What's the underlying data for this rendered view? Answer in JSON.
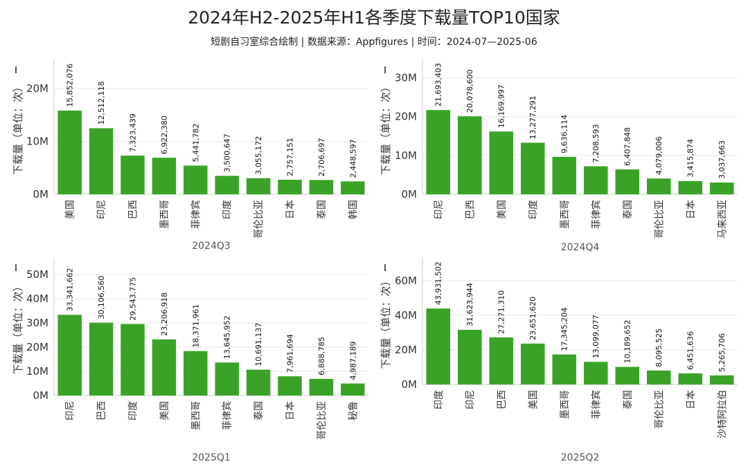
{
  "title": "2024年H2-2025年H1各季度下载量TOP10国家",
  "subtitle": "短剧自习室综合绘制 | 数据来源：Appfigures | 时间：2024-07—2025-06",
  "colors": {
    "bar": "#3aa327",
    "grid": "#e6e6e6",
    "axis": "#cccccc"
  },
  "chart_data": [
    {
      "type": "bar",
      "quarter": "2024Q3",
      "ylabel": "下载量（单位：次）",
      "ylim": [
        0,
        25000000
      ],
      "yticks": [
        0,
        10000000,
        20000000
      ],
      "ytick_labels": [
        "0M",
        "10M",
        "20M"
      ],
      "categories": [
        "美国",
        "印尼",
        "巴西",
        "墨西哥",
        "菲律宾",
        "印度",
        "哥伦比亚",
        "日本",
        "泰国",
        "韩国"
      ],
      "values": [
        15852076,
        12512118,
        7323439,
        6922380,
        5441782,
        3500647,
        3055172,
        2757151,
        2706697,
        2448597
      ],
      "value_labels": [
        "15,852,076",
        "12,512,118",
        "7,323,439",
        "6,922,380",
        "5,441,782",
        "3,500,647",
        "3,055,172",
        "2,757,151",
        "2,706,697",
        "2,448,597"
      ]
    },
    {
      "type": "bar",
      "quarter": "2024Q4",
      "ylabel": "下载量（单位：次）",
      "ylim": [
        0,
        34000000
      ],
      "yticks": [
        0,
        10000000,
        20000000,
        30000000
      ],
      "ytick_labels": [
        "0M",
        "10M",
        "20M",
        "30M"
      ],
      "categories": [
        "印尼",
        "巴西",
        "美国",
        "印度",
        "墨西哥",
        "菲律宾",
        "泰国",
        "哥伦比亚",
        "日本",
        "马来西亚"
      ],
      "values": [
        21693403,
        20078600,
        16169997,
        13277291,
        9636114,
        7208593,
        6407848,
        4079006,
        3415874,
        3037663
      ],
      "value_labels": [
        "21,693,403",
        "20,078,600",
        "16,169,997",
        "13,277,291",
        "9,636,114",
        "7,208,593",
        "6,407,848",
        "4,079,006",
        "3,415,874",
        "3,037,663"
      ]
    },
    {
      "type": "bar",
      "quarter": "2025Q1",
      "ylabel": "下载量（单位：次）",
      "ylim": [
        0,
        56000000
      ],
      "yticks": [
        0,
        10000000,
        20000000,
        30000000,
        40000000,
        50000000
      ],
      "ytick_labels": [
        "0M",
        "10M",
        "20M",
        "30M",
        "40M",
        "50M"
      ],
      "categories": [
        "印尼",
        "巴西",
        "印度",
        "美国",
        "墨西哥",
        "菲律宾",
        "泰国",
        "日本",
        "哥伦比亚",
        "秘鲁"
      ],
      "values": [
        33341662,
        30106560,
        29543775,
        23206918,
        18371961,
        13645952,
        10691137,
        7961694,
        6888785,
        4987189
      ],
      "value_labels": [
        "33,341,662",
        "30,106,560",
        "29,543,775",
        "23,206,918",
        "18,371,961",
        "13,645,952",
        "10,691,137",
        "7,961,694",
        "6,888,785",
        "4,987,189"
      ]
    },
    {
      "type": "bar",
      "quarter": "2025Q2",
      "ylabel": "下载量（单位：次）",
      "ylim": [
        0,
        72000000
      ],
      "yticks": [
        0,
        20000000,
        40000000,
        60000000
      ],
      "ytick_labels": [
        "0M",
        "20M",
        "40M",
        "60M"
      ],
      "categories": [
        "印度",
        "印尼",
        "巴西",
        "美国",
        "墨西哥",
        "菲律宾",
        "泰国",
        "哥伦比亚",
        "日本",
        "沙特阿拉伯"
      ],
      "values": [
        43931502,
        31623944,
        27271310,
        23651620,
        17345204,
        13099077,
        10189652,
        8095525,
        6451636,
        5265706
      ],
      "value_labels": [
        "43,931,502",
        "31,623,944",
        "27,271,310",
        "23,651,620",
        "17,345,204",
        "13,099,077",
        "10,189,652",
        "8,095,525",
        "6,451,636",
        "5,265,706"
      ]
    }
  ]
}
